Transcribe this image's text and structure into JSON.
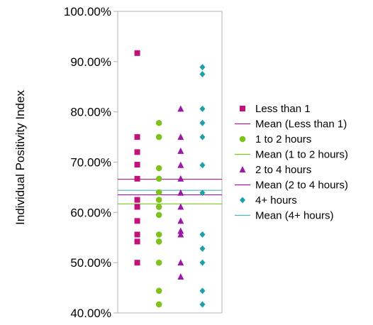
{
  "chart_data": {
    "type": "scatter",
    "title": "",
    "xlabel": "",
    "ylabel": "Individual Positivity Index",
    "ylim": [
      0.4,
      1.0
    ],
    "y_ticks": [
      "40.00%",
      "50.00%",
      "60.00%",
      "70.00%",
      "80.00%",
      "90.00%",
      "100.00%"
    ],
    "grid": false,
    "legend_position": "right",
    "series": [
      {
        "name": "Less than 1",
        "marker": "square",
        "color": "#c0127a",
        "mean_name": "Mean (Less than 1)",
        "mean_color": "#b0207e",
        "mean": 0.666,
        "values": [
          0.917,
          0.75,
          0.72,
          0.695,
          0.667,
          0.625,
          0.611,
          0.583,
          0.556,
          0.542,
          0.5
        ]
      },
      {
        "name": "1 to 2 hours",
        "marker": "circle",
        "color": "#7ec21c",
        "mean_name": "Mean (1 to 2 hours)",
        "mean_color": "#7ec21c",
        "mean": 0.617,
        "values": [
          0.778,
          0.75,
          0.688,
          0.667,
          0.64,
          0.625,
          0.611,
          0.595,
          0.556,
          0.542,
          0.5,
          0.444,
          0.417
        ]
      },
      {
        "name": "2 to 4 hours",
        "marker": "triangle",
        "color": "#9a1aa6",
        "mean_name": "Mean (2 to 4 hours)",
        "mean_color": "#9a1aa6",
        "mean": 0.635,
        "values": [
          0.806,
          0.75,
          0.722,
          0.694,
          0.667,
          0.639,
          0.611,
          0.583,
          0.563,
          0.556,
          0.5,
          0.472
        ]
      },
      {
        "name": "4+ hours",
        "marker": "diamond",
        "color": "#1ea0a8",
        "mean_name": "Mean (4+ hours)",
        "mean_color": "#4fb3c7",
        "mean": 0.644,
        "values": [
          0.889,
          0.875,
          0.806,
          0.778,
          0.75,
          0.694,
          0.639,
          0.556,
          0.528,
          0.5,
          0.444,
          0.417
        ]
      }
    ]
  }
}
